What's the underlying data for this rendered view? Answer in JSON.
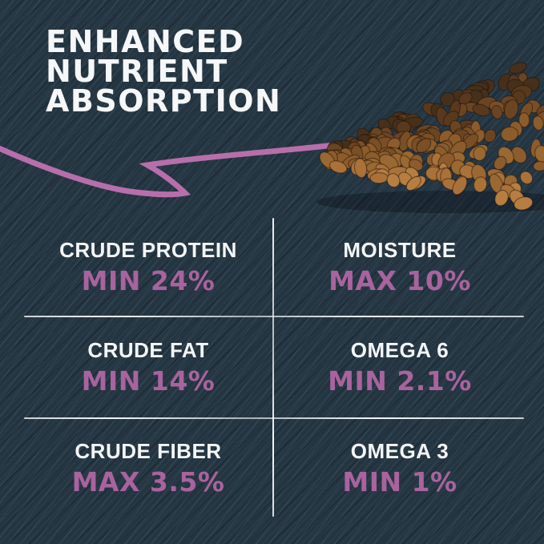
{
  "title": {
    "lines": [
      "ENHANCED",
      "NUTRIENT",
      "ABSORPTION"
    ]
  },
  "nutrition_table": {
    "cells": [
      {
        "label": "CRUDE PROTEIN",
        "value": "MIN 24%"
      },
      {
        "label": "MOISTURE",
        "value": "MAX 10%"
      },
      {
        "label": "CRUDE FAT",
        "value": "MIN 14%"
      },
      {
        "label": "OMEGA 6",
        "value": "MIN 2.1%"
      },
      {
        "label": "CRUDE FIBER",
        "value": "MAX 3.5%"
      },
      {
        "label": "OMEGA 3",
        "value": "MIN 1%"
      }
    ]
  },
  "colors": {
    "background": "#243542",
    "heading_text": "#f6f7f8",
    "label_text": "#f5f6f8",
    "value_accent": "#a9639e",
    "arrow": "#b76fab",
    "divider": "#f2f4f6",
    "kibble_palette": [
      "#46301b",
      "#59391d",
      "#6b4522",
      "#7b4f26",
      "#8c5c2c",
      "#9a6832",
      "#aa7239",
      "#b67e41"
    ]
  }
}
